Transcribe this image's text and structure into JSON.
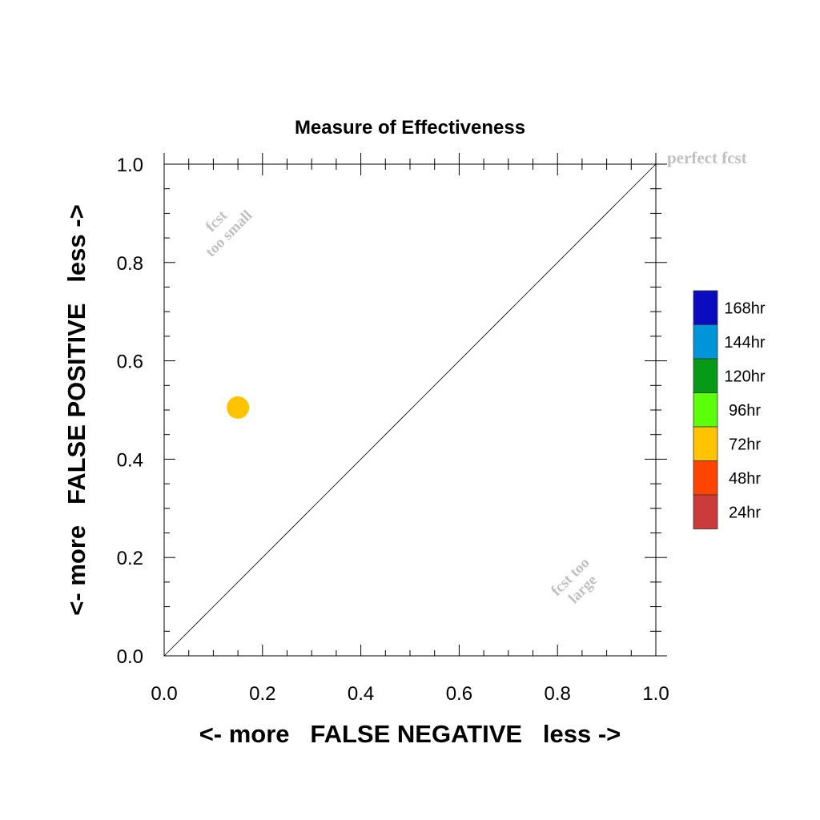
{
  "chart_data": {
    "type": "scatter",
    "title": "Measure of Effectiveness",
    "xlabel": "<- more   FALSE NEGATIVE   less ->",
    "ylabel": "<- more   FALSE POSITIVE   less ->",
    "xlim": [
      0.0,
      1.0
    ],
    "ylim": [
      0.0,
      1.0
    ],
    "xticks": [
      "0.0",
      "0.2",
      "0.4",
      "0.6",
      "0.8",
      "1.0"
    ],
    "yticks": [
      "0.0",
      "0.2",
      "0.4",
      "0.6",
      "0.8",
      "1.0"
    ],
    "grid": false,
    "diagonal_line": true,
    "annotations": {
      "perfect": "perfect fcst",
      "small_line1": "fcst",
      "small_line2": "too small",
      "large_line1": "fcst too",
      "large_line2": "large"
    },
    "legend": {
      "position": "right",
      "entries": [
        {
          "label": "168hr",
          "color": "#0b0bc0"
        },
        {
          "label": "144hr",
          "color": "#0094d9"
        },
        {
          "label": "120hr",
          "color": "#079a17"
        },
        {
          "label": "96hr",
          "color": "#5cff0a"
        },
        {
          "label": "72hr",
          "color": "#ffc300"
        },
        {
          "label": "48hr",
          "color": "#ff4400"
        },
        {
          "label": "24hr",
          "color": "#cc3b3b"
        }
      ]
    },
    "points": [
      {
        "series": "72hr",
        "x": 0.15,
        "y": 0.505,
        "color": "#ffc300"
      }
    ],
    "colors": {
      "axis": "#000000",
      "annotation": "#c0c0c0"
    }
  }
}
